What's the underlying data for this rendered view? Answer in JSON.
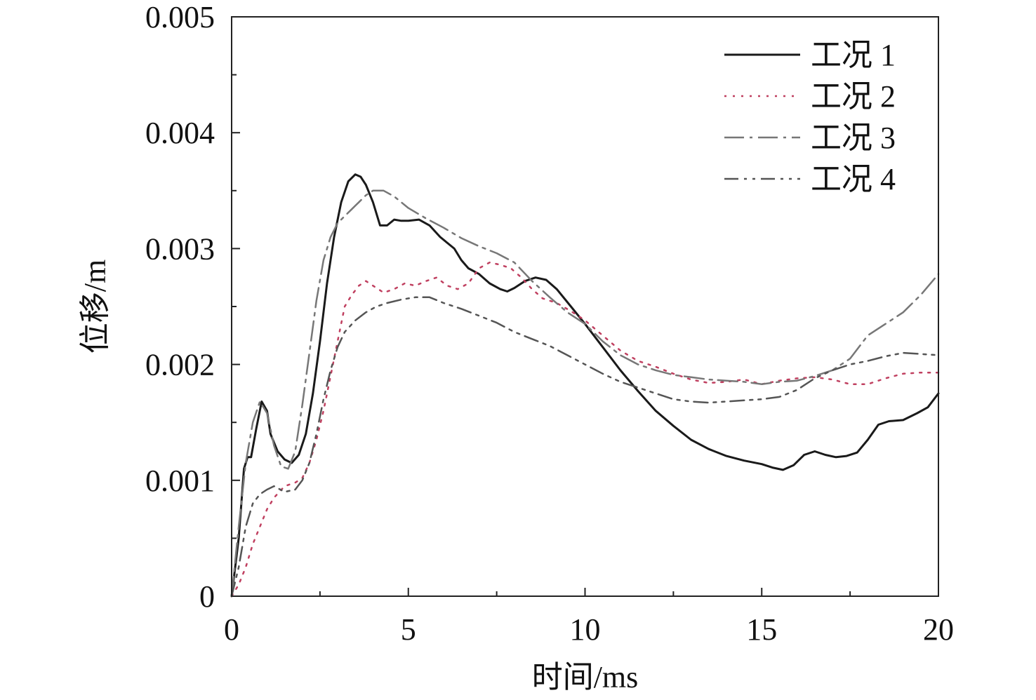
{
  "chart_data": {
    "type": "line",
    "xlabel": "时间/ms",
    "ylabel": "位移/m",
    "xlim": [
      0,
      20
    ],
    "ylim": [
      0,
      0.005
    ],
    "xticks": [
      0,
      5,
      10,
      15,
      20
    ],
    "xtick_labels": [
      "0",
      "5",
      "10",
      "15",
      "20"
    ],
    "yticks": [
      0,
      0.001,
      0.002,
      0.003,
      0.004,
      0.005
    ],
    "ytick_labels": [
      "0",
      "0.001",
      "0.002",
      "0.003",
      "0.004",
      "0.005"
    ],
    "grid": false,
    "legend_position": "top-right",
    "series": [
      {
        "name": "工况 1",
        "color": "#1a1a1a",
        "line_style": "solid",
        "x": [
          0,
          0.2,
          0.35,
          0.45,
          0.55,
          0.7,
          0.85,
          1.0,
          1.1,
          1.3,
          1.5,
          1.7,
          1.9,
          2.1,
          2.3,
          2.5,
          2.7,
          2.9,
          3.1,
          3.3,
          3.5,
          3.65,
          3.8,
          4.0,
          4.2,
          4.4,
          4.6,
          4.8,
          5.0,
          5.3,
          5.6,
          5.9,
          6.1,
          6.3,
          6.5,
          6.7,
          7.0,
          7.3,
          7.6,
          7.8,
          8.0,
          8.3,
          8.6,
          8.9,
          9.2,
          9.6,
          10.0,
          10.5,
          11.0,
          11.5,
          12.0,
          12.5,
          13.0,
          13.5,
          14.0,
          14.5,
          15.0,
          15.3,
          15.6,
          15.9,
          16.2,
          16.5,
          16.8,
          17.1,
          17.4,
          17.7,
          18.0,
          18.3,
          18.6,
          19.0,
          19.4,
          19.7,
          20.0
        ],
        "y": [
          0,
          0.0005,
          0.0011,
          0.0012,
          0.0012,
          0.00145,
          0.00168,
          0.0016,
          0.0014,
          0.00125,
          0.00118,
          0.00115,
          0.00122,
          0.0014,
          0.00175,
          0.0022,
          0.0027,
          0.0031,
          0.0034,
          0.00358,
          0.00364,
          0.00362,
          0.00355,
          0.0034,
          0.0032,
          0.0032,
          0.00325,
          0.00324,
          0.00324,
          0.00325,
          0.0032,
          0.0031,
          0.00305,
          0.003,
          0.0029,
          0.00283,
          0.00278,
          0.0027,
          0.00265,
          0.00263,
          0.00266,
          0.00272,
          0.00275,
          0.00273,
          0.00265,
          0.0025,
          0.00235,
          0.00215,
          0.00195,
          0.00177,
          0.0016,
          0.00147,
          0.00135,
          0.00127,
          0.00121,
          0.00117,
          0.00114,
          0.00111,
          0.00109,
          0.00113,
          0.00122,
          0.00125,
          0.00122,
          0.0012,
          0.00121,
          0.00124,
          0.00135,
          0.00148,
          0.00151,
          0.00152,
          0.00158,
          0.00163,
          0.00175
        ]
      },
      {
        "name": "工况 2",
        "color": "#c04060",
        "line_style": "dotted",
        "x": [
          0,
          0.2,
          0.4,
          0.6,
          0.8,
          1.0,
          1.2,
          1.5,
          1.8,
          2.0,
          2.2,
          2.4,
          2.6,
          2.8,
          3.0,
          3.2,
          3.4,
          3.6,
          3.8,
          4.0,
          4.3,
          4.6,
          4.9,
          5.2,
          5.5,
          5.8,
          6.1,
          6.4,
          6.7,
          7.0,
          7.3,
          7.6,
          7.9,
          8.2,
          8.5,
          8.8,
          9.2,
          9.6,
          10.0,
          10.5,
          11.0,
          11.5,
          12.0,
          12.5,
          13.0,
          13.5,
          14.0,
          14.5,
          15.0,
          15.5,
          16.0,
          16.5,
          17.0,
          17.5,
          18.0,
          18.5,
          19.0,
          19.5,
          20.0
        ],
        "y": [
          0,
          0.0001,
          0.00025,
          0.00045,
          0.0006,
          0.00075,
          0.00085,
          0.00095,
          0.00098,
          0.00102,
          0.00115,
          0.00135,
          0.0016,
          0.0019,
          0.0022,
          0.0025,
          0.0026,
          0.00268,
          0.00272,
          0.00268,
          0.00262,
          0.00265,
          0.0027,
          0.00268,
          0.00272,
          0.00275,
          0.00268,
          0.00265,
          0.0027,
          0.00283,
          0.00288,
          0.00286,
          0.00283,
          0.00275,
          0.00265,
          0.00257,
          0.00253,
          0.00246,
          0.00238,
          0.00225,
          0.00212,
          0.00203,
          0.00198,
          0.00192,
          0.00187,
          0.00184,
          0.00185,
          0.00187,
          0.00183,
          0.00186,
          0.00188,
          0.00189,
          0.00187,
          0.00183,
          0.00183,
          0.00188,
          0.00192,
          0.00193,
          0.00193
        ]
      },
      {
        "name": "工况 3",
        "color": "#777777",
        "line_style": "dashdot",
        "x": [
          0,
          0.2,
          0.4,
          0.6,
          0.8,
          1.0,
          1.2,
          1.4,
          1.6,
          1.8,
          2.0,
          2.2,
          2.4,
          2.6,
          2.8,
          3.0,
          3.2,
          3.4,
          3.6,
          3.8,
          4.0,
          4.3,
          4.6,
          5.0,
          5.5,
          6.0,
          6.5,
          7.0,
          7.5,
          8.0,
          8.5,
          9.0,
          9.5,
          10.0,
          10.5,
          11.0,
          11.5,
          12.0,
          12.5,
          13.0,
          13.5,
          14.0,
          14.5,
          15.0,
          15.5,
          16.0,
          16.5,
          17.0,
          17.5,
          18.0,
          18.5,
          19.0,
          19.5,
          20.0
        ],
        "y": [
          0,
          0.0006,
          0.00115,
          0.0015,
          0.00168,
          0.00158,
          0.0013,
          0.00112,
          0.0011,
          0.00125,
          0.00165,
          0.0021,
          0.00255,
          0.0029,
          0.0031,
          0.00322,
          0.00328,
          0.00334,
          0.0034,
          0.00346,
          0.0035,
          0.0035,
          0.00345,
          0.00335,
          0.00326,
          0.00318,
          0.00309,
          0.00302,
          0.00296,
          0.00288,
          0.00272,
          0.00258,
          0.00245,
          0.00235,
          0.0022,
          0.00208,
          0.002,
          0.00195,
          0.00191,
          0.00189,
          0.00187,
          0.00186,
          0.00185,
          0.00183,
          0.00185,
          0.00186,
          0.0019,
          0.00195,
          0.00205,
          0.00225,
          0.00235,
          0.00245,
          0.0026,
          0.00278
        ]
      },
      {
        "name": "工况 4",
        "color": "#555555",
        "line_style": "dashdotdot",
        "x": [
          0,
          0.2,
          0.4,
          0.6,
          0.8,
          1.0,
          1.2,
          1.5,
          1.8,
          2.0,
          2.2,
          2.4,
          2.6,
          2.8,
          3.0,
          3.2,
          3.5,
          3.8,
          4.1,
          4.4,
          4.8,
          5.2,
          5.6,
          6.0,
          6.5,
          7.0,
          7.5,
          8.0,
          8.5,
          9.0,
          9.5,
          10.0,
          10.5,
          11.0,
          11.5,
          12.0,
          12.5,
          13.0,
          13.5,
          14.0,
          14.5,
          15.0,
          15.5,
          16.0,
          16.5,
          17.0,
          17.5,
          18.0,
          18.5,
          19.0,
          19.5,
          20.0
        ],
        "y": [
          0,
          0.00025,
          0.0006,
          0.0008,
          0.00088,
          0.00092,
          0.00095,
          0.0009,
          0.00092,
          0.001,
          0.00115,
          0.0014,
          0.0017,
          0.00195,
          0.00215,
          0.00228,
          0.00238,
          0.00245,
          0.0025,
          0.00253,
          0.00256,
          0.00258,
          0.00258,
          0.00253,
          0.00248,
          0.00242,
          0.00236,
          0.00228,
          0.00222,
          0.00216,
          0.00208,
          0.002,
          0.00192,
          0.00185,
          0.0018,
          0.00175,
          0.0017,
          0.00168,
          0.00167,
          0.00168,
          0.00169,
          0.0017,
          0.00172,
          0.00178,
          0.00188,
          0.00195,
          0.002,
          0.00203,
          0.00207,
          0.0021,
          0.00209,
          0.00208
        ]
      }
    ]
  }
}
